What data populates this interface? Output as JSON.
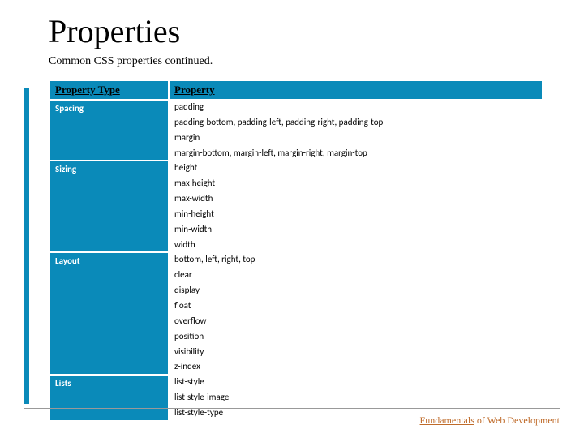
{
  "title": "Properties",
  "subtitle": "Common CSS properties continued.",
  "table": {
    "header_bg_color": "#0a8ab9",
    "type_col_bg_color": "#0a8ab9",
    "type_col_text_color": "#ffffff",
    "prop_col_bg_color": "#ffffff",
    "header_font_size": 13,
    "body_font_size": 11,
    "columns": [
      "Property Type",
      "Property"
    ],
    "rows": [
      {
        "type": "Spacing",
        "properties": [
          "padding",
          "padding-bottom, padding-left, padding-right, padding-top",
          "margin",
          "margin-bottom, margin-left, margin-right, margin-top"
        ]
      },
      {
        "type": "Sizing",
        "properties": [
          "height",
          "max-height",
          "max-width",
          "min-height",
          "min-width",
          "width"
        ]
      },
      {
        "type": "Layout",
        "properties": [
          "bottom, left, right, top",
          "clear",
          "display",
          "float",
          "overflow",
          "position",
          "visibility",
          "z-index"
        ]
      },
      {
        "type": "Lists",
        "properties": [
          "list-style",
          "list-style-image",
          "list-style-type"
        ]
      }
    ]
  },
  "footer": {
    "text_underlined": "Fundamentals",
    "text_rest": " of Web Development",
    "color": "#bf6b2a"
  },
  "accent_color": "#0a8ab9"
}
